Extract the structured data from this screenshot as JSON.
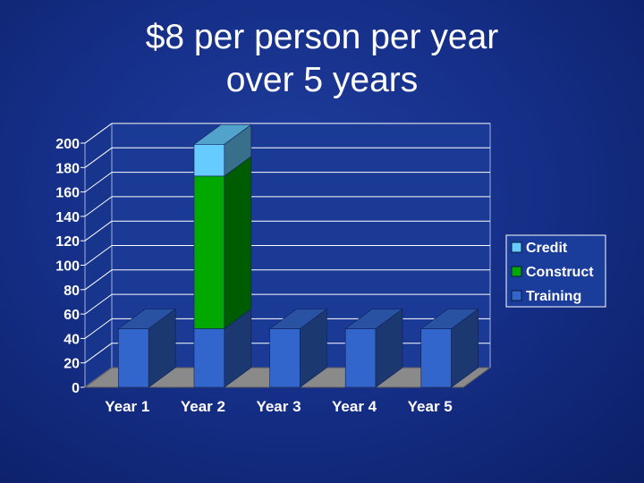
{
  "slide": {
    "title_line1": "$8 per person per year",
    "title_line2": "over 5 years"
  },
  "chart_data": {
    "type": "bar",
    "stacked": true,
    "three_d": true,
    "categories": [
      "Year 1",
      "Year 2",
      "Year 3",
      "Year 4",
      "Year 5"
    ],
    "series": [
      {
        "name": "Training",
        "color": "#3366cc",
        "values": [
          48,
          48,
          48,
          48,
          48
        ]
      },
      {
        "name": "Construct",
        "color": "#00a800",
        "values": [
          0,
          125,
          0,
          0,
          0
        ]
      },
      {
        "name": "Credit",
        "color": "#66ccff",
        "values": [
          0,
          26,
          0,
          0,
          0
        ]
      }
    ],
    "legend_order": [
      "Credit",
      "Construct",
      "Training"
    ],
    "ylim": [
      0,
      200
    ],
    "yticks": [
      0,
      20,
      40,
      60,
      80,
      100,
      120,
      140,
      160,
      180,
      200
    ],
    "grid": true,
    "legend_position": "right",
    "title": "",
    "xlabel": "",
    "ylabel": "",
    "colors": {
      "background": "#16308a",
      "plot_back_wall": "#1b3a95",
      "gridline": "#ffffff",
      "floor": "#8a8a8a",
      "legend_bg": "#1a3c9a"
    }
  }
}
